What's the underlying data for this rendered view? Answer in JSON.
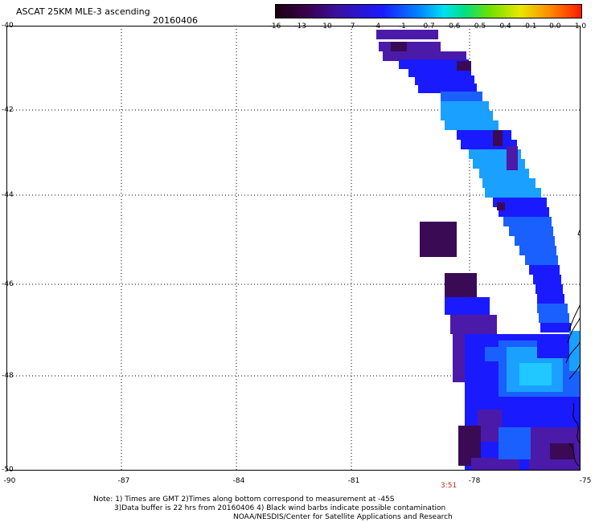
{
  "header": {
    "title": "ASCAT 25KM MLE-3 ascending",
    "date": "20160406"
  },
  "colorbar": {
    "ticks": [
      "-16",
      "-13",
      "-10",
      "-7",
      "-4",
      "-1",
      "-0.7",
      "-0.6",
      "-0.5",
      "-0.4",
      "-0.1",
      "0.0",
      "1.0"
    ]
  },
  "axes": {
    "lat_labels": [
      "-40",
      "-42",
      "-44",
      "-46",
      "-48",
      "-50"
    ],
    "lon_labels": [
      "-90",
      "-87",
      "-84",
      "-81",
      "-78",
      "-75"
    ]
  },
  "time_label": "3:51",
  "notes": {
    "line1": "Note: 1) Times are GMT 2)Times along bottom correspond to measurement at -45S",
    "line2": "3)Data buffer is 22 hrs from 20160406 4) Black wind barbs indicate possible contamination",
    "line3": "NOAA/NESDIS/Center for Satellite Applications and Research"
  },
  "colors": {
    "deep_purple": "#3a0a55",
    "violet": "#4b1aa8",
    "blue": "#1a1aff",
    "mid_blue": "#1a60ff",
    "light_blue": "#1aa0ff",
    "cyan": "#20c8ff",
    "time_label": "#c0301e"
  }
}
